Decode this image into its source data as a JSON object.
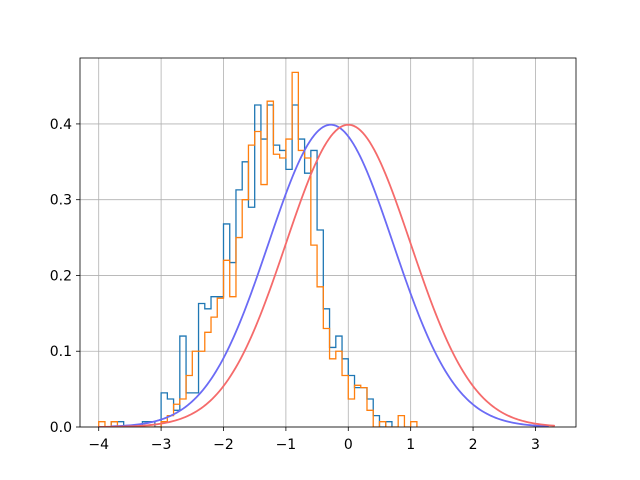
{
  "chart_data": {
    "type": "histogram",
    "title": "",
    "xlabel": "",
    "ylabel": "",
    "xlim": [
      -4.3,
      3.65
    ],
    "ylim": [
      0,
      0.487
    ],
    "xticks": [
      -4,
      -3,
      -2,
      -1,
      0,
      1,
      2,
      3
    ],
    "yticks": [
      0.0,
      0.1,
      0.2,
      0.3,
      0.4
    ],
    "xtick_labels": [
      "−4",
      "−3",
      "−2",
      "−1",
      "0",
      "1",
      "2",
      "3"
    ],
    "ytick_labels": [
      "0.0",
      "0.1",
      "0.2",
      "0.3",
      "0.4"
    ],
    "grid": true,
    "legend": "none",
    "series": [
      {
        "kind": "histogram-step",
        "color": "#1f77b4",
        "bin_start": -3.8,
        "bin_width": 0.1,
        "values": [
          0.007,
          0.007,
          0.0,
          0.0,
          0.0,
          0.007,
          0.007,
          0.0,
          0.045,
          0.037,
          0.022,
          0.12,
          0.045,
          0.045,
          0.163,
          0.156,
          0.172,
          0.172,
          0.268,
          0.217,
          0.313,
          0.35,
          0.29,
          0.425,
          0.38,
          0.425,
          0.372,
          0.365,
          0.34,
          0.425,
          0.38,
          0.335,
          0.365,
          0.26,
          0.156,
          0.105,
          0.12,
          0.09,
          0.068,
          0.052,
          0.052,
          0.037,
          0.015,
          0.0,
          0.007
        ]
      },
      {
        "kind": "histogram-step",
        "color": "#ff7f0e",
        "bin_start": -4.0,
        "bin_width": 0.1,
        "values": [
          0.007,
          0.0,
          0.007,
          0.0,
          0.0,
          0.0,
          0.0,
          0.0,
          0.0,
          0.0,
          0.007,
          0.015,
          0.03,
          0.037,
          0.068,
          0.1,
          0.1,
          0.125,
          0.145,
          0.17,
          0.22,
          0.172,
          0.25,
          0.3,
          0.372,
          0.39,
          0.32,
          0.43,
          0.36,
          0.355,
          0.38,
          0.468,
          0.365,
          0.355,
          0.24,
          0.185,
          0.13,
          0.09,
          0.1,
          0.068,
          0.037,
          0.055,
          0.052,
          0.022,
          0.0,
          0.007,
          0.0,
          0.0,
          0.015,
          0.0,
          0.007
        ]
      },
      {
        "kind": "pdf-curve",
        "color": "#6b6bf5",
        "mean": -0.28,
        "std": 1.0,
        "x_range": [
          -3.8,
          3.2
        ]
      },
      {
        "kind": "pdf-curve",
        "color": "#f56b6b",
        "mean": 0.0,
        "std": 1.0,
        "x_range": [
          -4.0,
          3.3
        ]
      }
    ]
  }
}
